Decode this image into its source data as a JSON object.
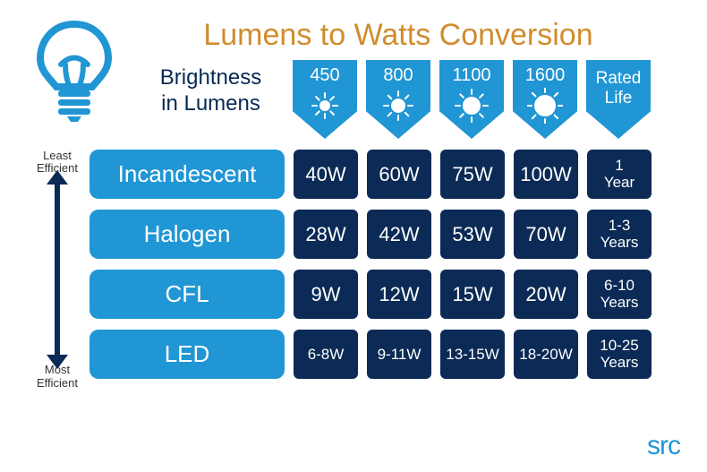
{
  "title": "Lumens to Watts Conversion",
  "title_color": "#d18c2d",
  "subtitle_line1": "Brightness",
  "subtitle_line2": "in Lumens",
  "eff_least": "Least\nEfficient",
  "eff_most": "Most\nEfficient",
  "colors": {
    "accent_blue": "#2196d4",
    "dark_navy": "#0b2a55",
    "title": "#d18c2d",
    "text_dark": "#072a52"
  },
  "lumen_columns": [
    {
      "value": "450",
      "sun_size": 12
    },
    {
      "value": "800",
      "sun_size": 16
    },
    {
      "value": "1100",
      "sun_size": 20
    },
    {
      "value": "1600",
      "sun_size": 24
    }
  ],
  "rated_life_header": {
    "line1": "Rated",
    "line2": "Life"
  },
  "rows": [
    {
      "label": "Incandescent",
      "watts": [
        "40W",
        "60W",
        "75W",
        "100W"
      ],
      "watts_small": false,
      "life": "1\nYear"
    },
    {
      "label": "Halogen",
      "watts": [
        "28W",
        "42W",
        "53W",
        "70W"
      ],
      "watts_small": false,
      "life": "1-3\nYears"
    },
    {
      "label": "CFL",
      "watts": [
        "9W",
        "12W",
        "15W",
        "20W"
      ],
      "watts_small": false,
      "life": "6-10\nYears"
    },
    {
      "label": "LED",
      "watts": [
        "6-8W",
        "9-11W",
        "13-15W",
        "18-20W"
      ],
      "watts_small": true,
      "life": "10-25\nYears"
    }
  ],
  "logo_text": "src"
}
